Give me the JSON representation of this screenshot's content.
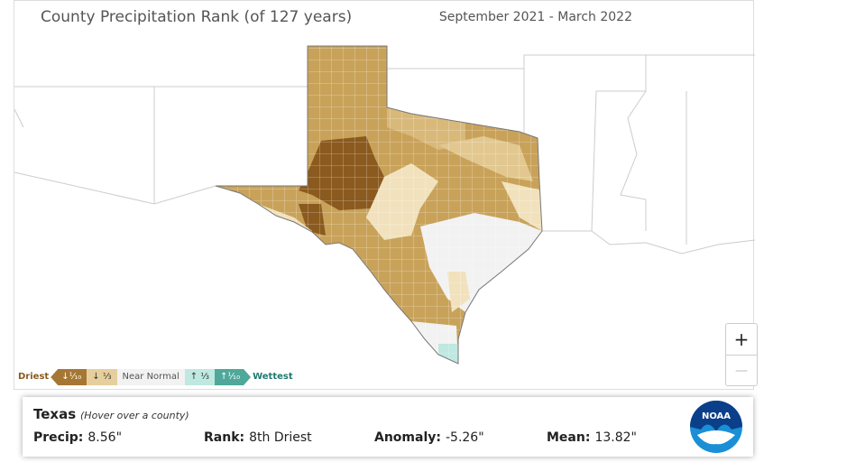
{
  "header": {
    "title": "County Precipitation Rank (of 127 years)",
    "period": "September 2021 - March 2022"
  },
  "legend": {
    "start": "Driest",
    "items": [
      "↓¹⁄₁₀",
      "↓ ⅓",
      "Near Normal",
      "↑ ⅓",
      "↑¹⁄₁₀"
    ],
    "end": "Wettest"
  },
  "zoom": {
    "in": "+",
    "out": "—"
  },
  "info": {
    "region": "Texas",
    "hint": "(Hover over a county)",
    "fields": [
      {
        "label": "Precip:",
        "value": "8.56\""
      },
      {
        "label": "Rank:",
        "value": "8th Driest"
      },
      {
        "label": "Anomaly:",
        "value": "-5.26\""
      },
      {
        "label": "Mean:",
        "value": "13.82\""
      }
    ]
  },
  "logo": "NOAA"
}
